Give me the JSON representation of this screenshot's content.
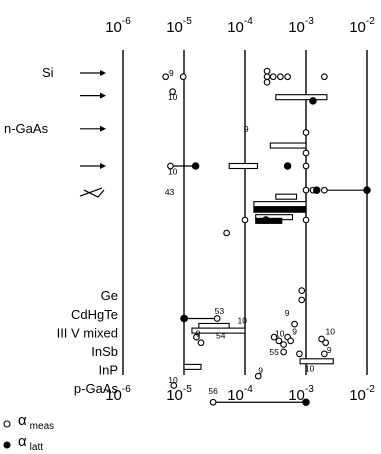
{
  "chart_data": {
    "type": "scatter",
    "xscale": "log",
    "xlim": [
      1e-06,
      0.01
    ],
    "x_ticks": [
      {
        "base": "10",
        "exp": "-6",
        "value": 1e-06
      },
      {
        "base": "10",
        "exp": "-5",
        "value": 1e-05
      },
      {
        "base": "10",
        "exp": "-4",
        "value": 0.0001
      },
      {
        "base": "10",
        "exp": "-3",
        "value": 0.001
      },
      {
        "base": "10",
        "exp": "-2",
        "value": 0.01
      }
    ],
    "material_labels": [
      {
        "text": "Si",
        "row": 1
      },
      {
        "text": "n-GaAs",
        "row": 4
      },
      {
        "text": "Ge",
        "row": 13
      },
      {
        "text": "CdHgTe",
        "row": 14
      },
      {
        "text": "III V mixed",
        "row": 15
      },
      {
        "text": "InSb",
        "row": 16
      },
      {
        "text": "InP",
        "row": 17
      },
      {
        "text": "p-GaAs",
        "row": 18
      }
    ],
    "ref_labels": [
      {
        "text": "9",
        "x": 6.2e-06,
        "row": 1.0
      },
      {
        "text": "10",
        "x": 6.5e-06,
        "row": 2.3
      },
      {
        "text": "9",
        "x": 0.000105,
        "row": 4.0
      },
      {
        "text": "10",
        "x": 6.5e-06,
        "row": 6.3
      },
      {
        "text": "43",
        "x": 5.8e-06,
        "row": 7.4
      },
      {
        "text": "53",
        "x": 3.8e-05,
        "row": 13.8
      },
      {
        "text": "9",
        "x": 1.08e-05,
        "row": 14.2
      },
      {
        "text": "10",
        "x": 9e-05,
        "row": 14.3
      },
      {
        "text": "9",
        "x": 0.00049,
        "row": 13.9
      },
      {
        "text": "9",
        "x": 1.7e-05,
        "row": 15.0
      },
      {
        "text": "54",
        "x": 4e-05,
        "row": 15.1
      },
      {
        "text": "10",
        "x": 0.00037,
        "row": 15.0
      },
      {
        "text": "9",
        "x": 0.00065,
        "row": 14.9
      },
      {
        "text": "10",
        "x": 0.0025,
        "row": 14.9
      },
      {
        "text": "55",
        "x": 0.0003,
        "row": 16.0
      },
      {
        "text": "9",
        "x": 0.0024,
        "row": 15.9
      },
      {
        "text": "10",
        "x": 0.00115,
        "row": 16.9
      },
      {
        "text": "9",
        "x": 0.00018,
        "row": 17.0
      },
      {
        "text": "10",
        "x": 6.6e-06,
        "row": 17.5
      },
      {
        "text": "56",
        "x": 3e-05,
        "row": 18.1
      }
    ],
    "series": [
      {
        "name": "α_meas",
        "marker": "open-circle",
        "points": [
          {
            "x": 5e-06,
            "row": 1.2
          },
          {
            "x": 9.7e-06,
            "row": 1.2
          },
          {
            "x": 0.00023,
            "row": 0.9
          },
          {
            "x": 0.00023,
            "row": 1.2
          },
          {
            "x": 0.00023,
            "row": 1.5
          },
          {
            "x": 0.00029,
            "row": 1.2
          },
          {
            "x": 0.00038,
            "row": 1.2
          },
          {
            "x": 0.0005,
            "row": 1.2
          },
          {
            "x": 0.002,
            "row": 1.2
          },
          {
            "x": 6.5e-06,
            "row": 2.0
          },
          {
            "x": 0.001,
            "row": 4.2
          },
          {
            "x": 6e-06,
            "row": 6.0
          },
          {
            "x": 0.001,
            "row": 5.3
          },
          {
            "x": 0.001,
            "row": 6.0
          },
          {
            "x": 0.001,
            "row": 7.3
          },
          {
            "x": 0.0013,
            "row": 7.3
          },
          {
            "x": 0.002,
            "row": 7.3
          },
          {
            "x": 0.0001,
            "row": 8.9
          },
          {
            "x": 0.001,
            "row": 8.9
          },
          {
            "x": 5e-05,
            "row": 9.6
          },
          {
            "x": 0.00085,
            "row": 12.7
          },
          {
            "x": 0.00085,
            "row": 13.2
          },
          {
            "x": 3.5e-05,
            "row": 14.2
          },
          {
            "x": 0.00065,
            "row": 14.5
          },
          {
            "x": 1.6e-05,
            "row": 15.2
          },
          {
            "x": 1.9e-05,
            "row": 15.5
          },
          {
            "x": 0.0003,
            "row": 15.2
          },
          {
            "x": 0.00036,
            "row": 15.4
          },
          {
            "x": 0.00043,
            "row": 15.6
          },
          {
            "x": 0.0005,
            "row": 15.2
          },
          {
            "x": 0.00056,
            "row": 15.4
          },
          {
            "x": 0.0018,
            "row": 15.3
          },
          {
            "x": 0.0021,
            "row": 15.5
          },
          {
            "x": 0.00043,
            "row": 16.0
          },
          {
            "x": 0.00078,
            "row": 16.1
          },
          {
            "x": 0.002,
            "row": 16.1
          },
          {
            "x": 0.000165,
            "row": 17.3
          },
          {
            "x": 6.8e-06,
            "row": 17.8
          },
          {
            "x": 3e-05,
            "row": 18.7
          }
        ]
      },
      {
        "name": "α_latt",
        "marker": "filled-circle",
        "points": [
          {
            "x": 0.0013,
            "row": 2.5
          },
          {
            "x": 1.55e-05,
            "row": 6.0
          },
          {
            "x": 0.0005,
            "row": 6.0
          },
          {
            "x": 0.0015,
            "row": 7.3
          },
          {
            "x": 0.01,
            "row": 7.3
          },
          {
            "x": 0.00022,
            "row": 8.9
          },
          {
            "x": 1e-05,
            "row": 14.2
          },
          {
            "x": 0.001,
            "row": 18.7
          }
        ]
      }
    ],
    "ranges": [
      {
        "x0": 0.00032,
        "x1": 0.0022,
        "row": 2.3,
        "fill": "open"
      },
      {
        "x0": 0.00026,
        "x1": 0.001,
        "row": 4.9,
        "fill": "open"
      },
      {
        "x0": 5.5e-05,
        "x1": 0.00016,
        "row": 6.0,
        "fill": "open"
      },
      {
        "x0": 0.00032,
        "x1": 0.0007,
        "row": 7.65,
        "fill": "open"
      },
      {
        "x0": 0.00014,
        "x1": 0.001,
        "row": 8.05,
        "fill": "open"
      },
      {
        "x0": 0.00014,
        "x1": 0.001,
        "row": 8.35,
        "fill": "black"
      },
      {
        "x0": 0.00015,
        "x1": 0.0006,
        "row": 8.75,
        "fill": "open"
      },
      {
        "x0": 0.00015,
        "x1": 0.0004,
        "row": 8.95,
        "fill": "black"
      },
      {
        "x0": 1.75e-05,
        "x1": 5.5e-05,
        "row": 14.6,
        "fill": "open"
      },
      {
        "x0": 1.35e-05,
        "x1": 0.0001,
        "row": 14.85,
        "fill": "open"
      },
      {
        "x0": 0.0008,
        "x1": 0.0028,
        "row": 16.5,
        "fill": "open"
      },
      {
        "x0": 1e-05,
        "x1": 1.9e-05,
        "row": 16.8,
        "fill": "open"
      }
    ],
    "connectors": [
      {
        "x0": 6e-06,
        "x1": 1.55e-05,
        "row": 6.0
      },
      {
        "x0": 0.002,
        "x1": 0.01,
        "row": 7.3
      },
      {
        "x0": 3e-05,
        "x1": 0.001,
        "row": 18.7
      },
      {
        "x0": 1e-05,
        "x1": 3.5e-05,
        "row": 14.2
      }
    ],
    "legend": {
      "placement": "bottom-left",
      "entries": [
        {
          "symbol": "α",
          "sub": "meas",
          "marker": "open-circle"
        },
        {
          "symbol": "α",
          "sub": "latt",
          "marker": "filled-circle"
        }
      ]
    },
    "grid": "vertical at decades"
  }
}
